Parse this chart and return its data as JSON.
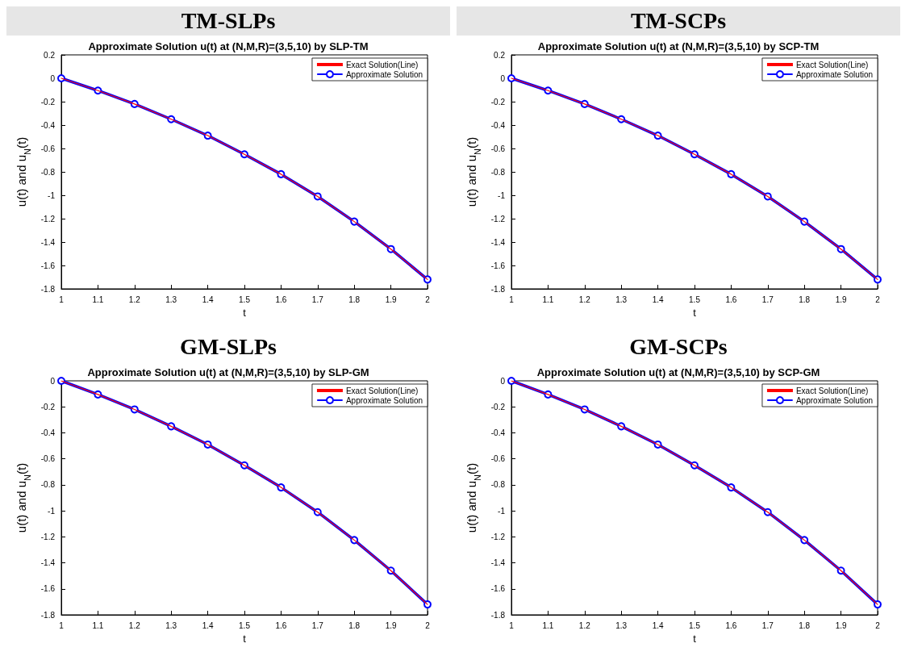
{
  "chart_data": [
    {
      "type": "line",
      "title": "TM-SLPs",
      "subtitle": "Approximate Solution u(t) at (N,M,R)=(3,5,10) by SLP-TM",
      "xlabel": "t",
      "ylabel": "u(t) and u$_{N}$(t)",
      "x": [
        1,
        1.1,
        1.2,
        1.3,
        1.4,
        1.5,
        1.6,
        1.7,
        1.8,
        1.9,
        2
      ],
      "series": [
        {
          "name": "Exact Solution(Line)",
          "color": "#ff0000",
          "marker": "none",
          "values": [
            0,
            -0.105,
            -0.22,
            -0.35,
            -0.49,
            -0.65,
            -0.82,
            -1.01,
            -1.225,
            -1.46,
            -1.72
          ]
        },
        {
          "name": "Approximate Solution",
          "color": "#0000ff",
          "marker": "circle",
          "values": [
            0,
            -0.105,
            -0.22,
            -0.35,
            -0.49,
            -0.65,
            -0.82,
            -1.01,
            -1.225,
            -1.46,
            -1.72
          ]
        }
      ],
      "xlim": [
        1,
        2
      ],
      "xticks": [
        1,
        1.1,
        1.2,
        1.3,
        1.4,
        1.5,
        1.6,
        1.7,
        1.8,
        1.9,
        2
      ],
      "ylim": [
        -1.8,
        0.2
      ],
      "yticks": [
        -1.8,
        -1.6,
        -1.4,
        -1.2,
        -1,
        -0.8,
        -0.6,
        -0.4,
        -0.2,
        0,
        0.2
      ],
      "grid": false,
      "legend": "top right"
    },
    {
      "type": "line",
      "title": "TM-SCPs",
      "subtitle": "Approximate Solution u(t) at (N,M,R)=(3,5,10) by SCP-TM",
      "xlabel": "t",
      "ylabel": "u(t) and u$_{N}$(t)",
      "x": [
        1,
        1.1,
        1.2,
        1.3,
        1.4,
        1.5,
        1.6,
        1.7,
        1.8,
        1.9,
        2
      ],
      "series": [
        {
          "name": "Exact Solution(Line)",
          "color": "#ff0000",
          "marker": "none",
          "values": [
            0,
            -0.105,
            -0.22,
            -0.35,
            -0.49,
            -0.65,
            -0.82,
            -1.01,
            -1.225,
            -1.46,
            -1.72
          ]
        },
        {
          "name": "Approximate Solution",
          "color": "#0000ff",
          "marker": "circle",
          "values": [
            0,
            -0.105,
            -0.22,
            -0.35,
            -0.49,
            -0.65,
            -0.82,
            -1.01,
            -1.225,
            -1.46,
            -1.72
          ]
        }
      ],
      "xlim": [
        1,
        2
      ],
      "xticks": [
        1,
        1.1,
        1.2,
        1.3,
        1.4,
        1.5,
        1.6,
        1.7,
        1.8,
        1.9,
        2
      ],
      "ylim": [
        -1.8,
        0.2
      ],
      "yticks": [
        -1.8,
        -1.6,
        -1.4,
        -1.2,
        -1,
        -0.8,
        -0.6,
        -0.4,
        -0.2,
        0,
        0.2
      ],
      "grid": false,
      "legend": "top right"
    },
    {
      "type": "line",
      "title": "GM-SLPs",
      "subtitle": "Approximate Solution u(t) at (N,M,R)=(3,5,10) by SLP-GM",
      "xlabel": "t",
      "ylabel": "u(t) and u$_{N}$(t)",
      "x": [
        1,
        1.1,
        1.2,
        1.3,
        1.4,
        1.5,
        1.6,
        1.7,
        1.8,
        1.9,
        2
      ],
      "series": [
        {
          "name": "Exact Solution(Line)",
          "color": "#ff0000",
          "marker": "none",
          "values": [
            0,
            -0.105,
            -0.22,
            -0.35,
            -0.49,
            -0.65,
            -0.82,
            -1.01,
            -1.225,
            -1.46,
            -1.72
          ]
        },
        {
          "name": "Approximate Solution",
          "color": "#0000ff",
          "marker": "circle",
          "values": [
            0,
            -0.105,
            -0.22,
            -0.35,
            -0.49,
            -0.65,
            -0.82,
            -1.01,
            -1.225,
            -1.46,
            -1.72
          ]
        }
      ],
      "xlim": [
        1,
        2
      ],
      "xticks": [
        1,
        1.1,
        1.2,
        1.3,
        1.4,
        1.5,
        1.6,
        1.7,
        1.8,
        1.9,
        2
      ],
      "ylim": [
        -1.8,
        0
      ],
      "yticks": [
        -1.8,
        -1.6,
        -1.4,
        -1.2,
        -1,
        -0.8,
        -0.6,
        -0.4,
        -0.2,
        0
      ],
      "grid": false,
      "legend": "top right"
    },
    {
      "type": "line",
      "title": "GM-SCPs",
      "subtitle": "Approximate Solution u(t) at (N,M,R)=(3,5,10) by SCP-GM",
      "xlabel": "t",
      "ylabel": "u(t) and u$_{N}$(t)",
      "x": [
        1,
        1.1,
        1.2,
        1.3,
        1.4,
        1.5,
        1.6,
        1.7,
        1.8,
        1.9,
        2
      ],
      "series": [
        {
          "name": "Exact Solution(Line)",
          "color": "#ff0000",
          "marker": "none",
          "values": [
            0,
            -0.105,
            -0.22,
            -0.35,
            -0.49,
            -0.65,
            -0.82,
            -1.01,
            -1.225,
            -1.46,
            -1.72
          ]
        },
        {
          "name": "Approximate Solution",
          "color": "#0000ff",
          "marker": "circle",
          "values": [
            0,
            -0.105,
            -0.22,
            -0.35,
            -0.49,
            -0.65,
            -0.82,
            -1.01,
            -1.225,
            -1.46,
            -1.72
          ]
        }
      ],
      "xlim": [
        1,
        2
      ],
      "xticks": [
        1,
        1.1,
        1.2,
        1.3,
        1.4,
        1.5,
        1.6,
        1.7,
        1.8,
        1.9,
        2
      ],
      "ylim": [
        -1.8,
        0
      ],
      "yticks": [
        -1.8,
        -1.6,
        -1.4,
        -1.2,
        -1,
        -0.8,
        -0.6,
        -0.4,
        -0.2,
        0
      ],
      "grid": false,
      "legend": "top right"
    }
  ]
}
